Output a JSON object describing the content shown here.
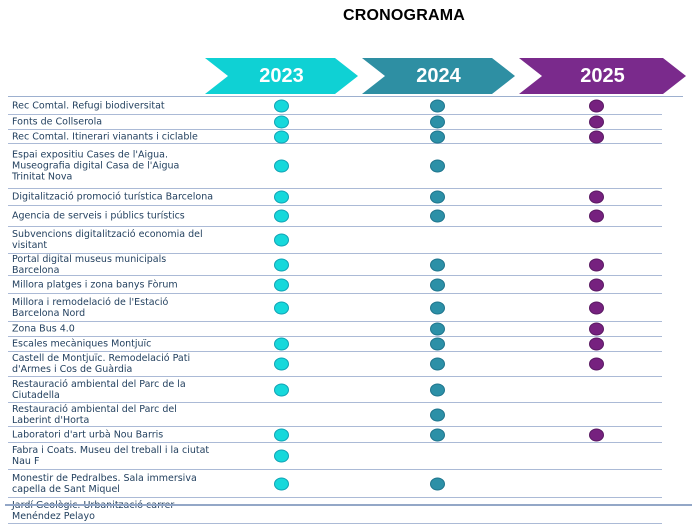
{
  "title": "CRONOGRAMA",
  "years": [
    {
      "label": "2023",
      "color": "#0fd1d4",
      "dot_fill": "#16d8db",
      "dot_stroke": "#11a3b5"
    },
    {
      "label": "2024",
      "color": "#2e8fa3",
      "dot_fill": "#2c90a7",
      "dot_stroke": "#1f758d"
    },
    {
      "label": "2025",
      "color": "#7a2a8c",
      "dot_fill": "#76217f",
      "dot_stroke": "#5a1a63"
    }
  ],
  "chart_data": {
    "type": "table",
    "title": "CRONOGRAMA",
    "columns": [
      "2023",
      "2024",
      "2025"
    ],
    "legend_position": "top",
    "rows": [
      {
        "label": "Rec Comtal. Refugi biodiversitat",
        "active": [
          "2023",
          "2024",
          "2025"
        ]
      },
      {
        "label": "Fonts de Collserola",
        "active": [
          "2023",
          "2024",
          "2025"
        ]
      },
      {
        "label": "Rec Comtal. Itinerari vianants i ciclable",
        "active": [
          "2023",
          "2024",
          "2025"
        ]
      },
      {
        "label": "Espai expositiu Cases de l'Aigua.\nMuseografia digital Casa de l'Aigua\nTrinitat Nova",
        "active": [
          "2023",
          "2024"
        ]
      },
      {
        "label": "Digitalització promoció turística Barcelona",
        "active": [
          "2023",
          "2024",
          "2025"
        ]
      },
      {
        "label": "Agencia de serveis i públics turístics",
        "active": [
          "2023",
          "2024",
          "2025"
        ]
      },
      {
        "label": "Subvencions digitalització economia del\nvisitant",
        "active": [
          "2023"
        ]
      },
      {
        "label": "Portal digital museus municipals\nBarcelona",
        "active": [
          "2023",
          "2024",
          "2025"
        ]
      },
      {
        "label": "Millora platges i zona banys Fòrum",
        "active": [
          "2023",
          "2024",
          "2025"
        ]
      },
      {
        "label": "Millora i remodelació de l'Estació\nBarcelona Nord",
        "active": [
          "2023",
          "2024",
          "2025"
        ]
      },
      {
        "label": "Zona Bus 4.0",
        "active": [
          "2024",
          "2025"
        ]
      },
      {
        "label": "Escales mecàniques Montjuïc",
        "active": [
          "2023",
          "2024",
          "2025"
        ]
      },
      {
        "label": "Castell de Montjuïc. Remodelació Pati\nd'Armes i Cos de Guàrdia",
        "active": [
          "2023",
          "2024",
          "2025"
        ]
      },
      {
        "label": "Restauració ambiental del Parc de la\nCiutadella",
        "active": [
          "2023",
          "2024"
        ]
      },
      {
        "label": "Restauració ambiental del Parc del\nLaberint d'Horta",
        "active": [
          "2024"
        ]
      },
      {
        "label": "Laboratori d'art urbà Nou Barris",
        "active": [
          "2023",
          "2024",
          "2025"
        ]
      },
      {
        "label": "Fabra i Coats. Museu del treball i la ciutat\nNau F",
        "active": [
          "2023"
        ]
      },
      {
        "label": "Monestir de Pedralbes. Sala immersiva\ncapella de Sant Miquel",
        "active": [
          "2023",
          "2024"
        ]
      },
      {
        "label": "Jardí Geològic. Urbanització carrer\nMenéndez Pelayo",
        "active": []
      }
    ]
  }
}
